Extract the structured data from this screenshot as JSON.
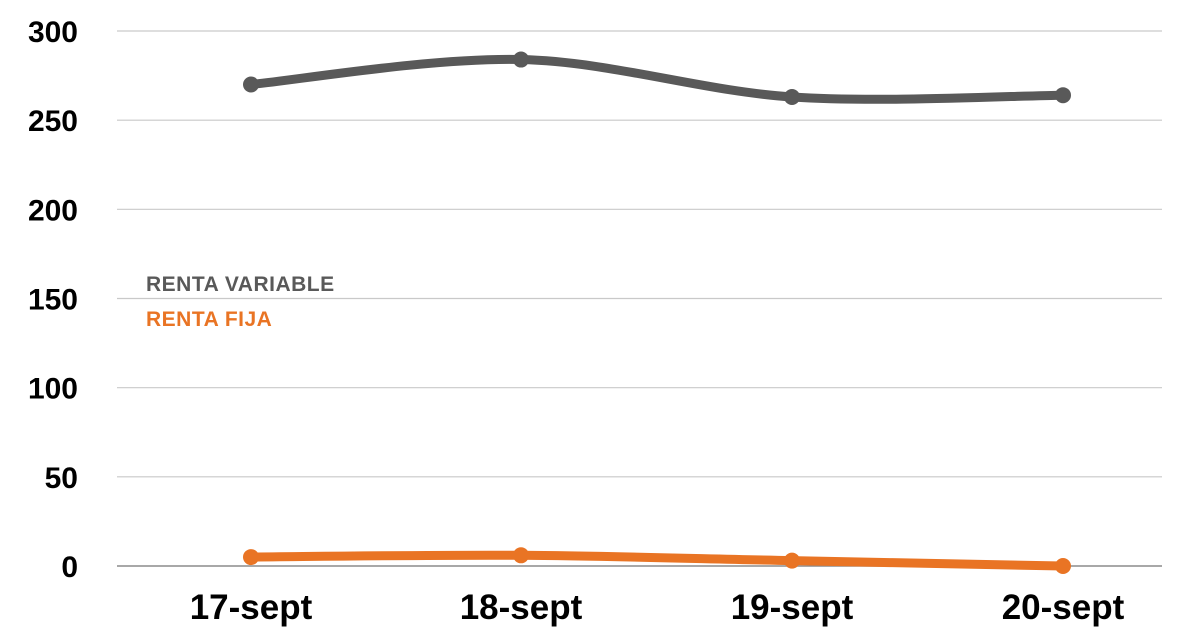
{
  "chart_data": {
    "type": "line",
    "categories": [
      "17-sept",
      "18-sept",
      "19-sept",
      "20-sept"
    ],
    "ylim": [
      0,
      300
    ],
    "yticks": [
      0,
      50,
      100,
      150,
      200,
      250,
      300
    ],
    "ytick_labels": [
      "0",
      "50",
      "100",
      "150",
      "200",
      "250",
      "300"
    ],
    "grid": true,
    "legend_position": "left",
    "smooth": true,
    "series": [
      {
        "name": "RENTA VARIABLE",
        "values": [
          270,
          284,
          263,
          264
        ],
        "color": "#595959"
      },
      {
        "name": "RENTA FIJA",
        "values": [
          5,
          6,
          3,
          0
        ],
        "color": "#E97424"
      }
    ]
  },
  "colors": {
    "grid": "#C9C9C9",
    "axis": "#8C8C8C"
  }
}
